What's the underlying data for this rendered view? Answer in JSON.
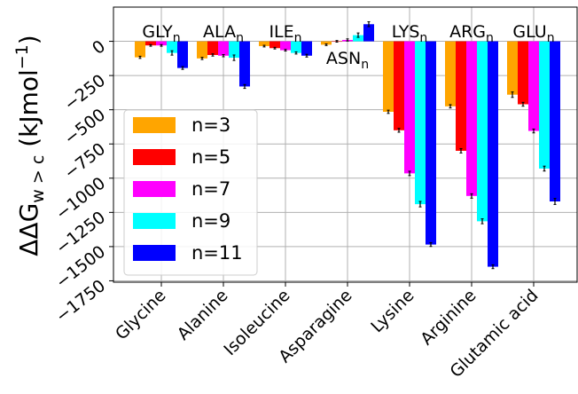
{
  "chart_data": {
    "type": "bar",
    "y_label": {
      "main": "ΔΔG",
      "sub": "w > c",
      "rest": " (kJmol",
      "sup": "−1",
      "end": ")"
    },
    "categories": [
      "Glycine",
      "Alanine",
      "Isoleucine",
      "Asparagine",
      "Lysine",
      "Arginine",
      "Glutamic acid"
    ],
    "annotations": [
      {
        "label": "GLY",
        "subscript": "n"
      },
      {
        "label": "ALA",
        "subscript": "n"
      },
      {
        "label": "ILE",
        "subscript": "n"
      },
      {
        "label": "ASN",
        "subscript": "n"
      },
      {
        "label": "LYS",
        "subscript": "n"
      },
      {
        "label": "ARG",
        "subscript": "n"
      },
      {
        "label": "GLU",
        "subscript": "n"
      }
    ],
    "series": [
      {
        "name": "n=3",
        "color": "#ffa500",
        "values": [
          -117,
          -125,
          -35,
          -25,
          -515,
          -475,
          -390
        ],
        "errors": [
          8,
          8,
          6,
          6,
          12,
          12,
          20
        ]
      },
      {
        "name": "n=5",
        "color": "#ff0000",
        "values": [
          -30,
          -100,
          -50,
          0,
          -650,
          -800,
          -460
        ],
        "errors": [
          6,
          8,
          6,
          6,
          14,
          16,
          14
        ]
      },
      {
        "name": "n=7",
        "color": "#ff00ff",
        "values": [
          -30,
          -105,
          -65,
          10,
          -965,
          -1130,
          -655
        ],
        "errors": [
          6,
          8,
          6,
          8,
          16,
          16,
          14
        ]
      },
      {
        "name": "n=9",
        "color": "#00ffff",
        "values": [
          -85,
          -120,
          -85,
          45,
          -1190,
          -1315,
          -930
        ],
        "errors": [
          16,
          20,
          8,
          16,
          20,
          18,
          18
        ]
      },
      {
        "name": "n=11",
        "color": "#0000ff",
        "values": [
          -195,
          -330,
          -105,
          125,
          -1485,
          -1647,
          -1170
        ],
        "errors": [
          10,
          14,
          10,
          18,
          14,
          14,
          22
        ]
      }
    ],
    "ylim": [
      -1760,
      250
    ],
    "yticks": [
      0,
      {
        "value": -250,
        "label": "−250"
      },
      {
        "value": -500,
        "label": "−500"
      },
      {
        "value": -750,
        "label": "−750"
      },
      {
        "value": -1000,
        "label": "−1000"
      },
      {
        "value": -1250,
        "label": "−1250"
      },
      {
        "value": -1500,
        "label": "−1500"
      },
      {
        "value": -1750,
        "label": "−1750"
      }
    ],
    "grid": true,
    "legend": "center left"
  }
}
